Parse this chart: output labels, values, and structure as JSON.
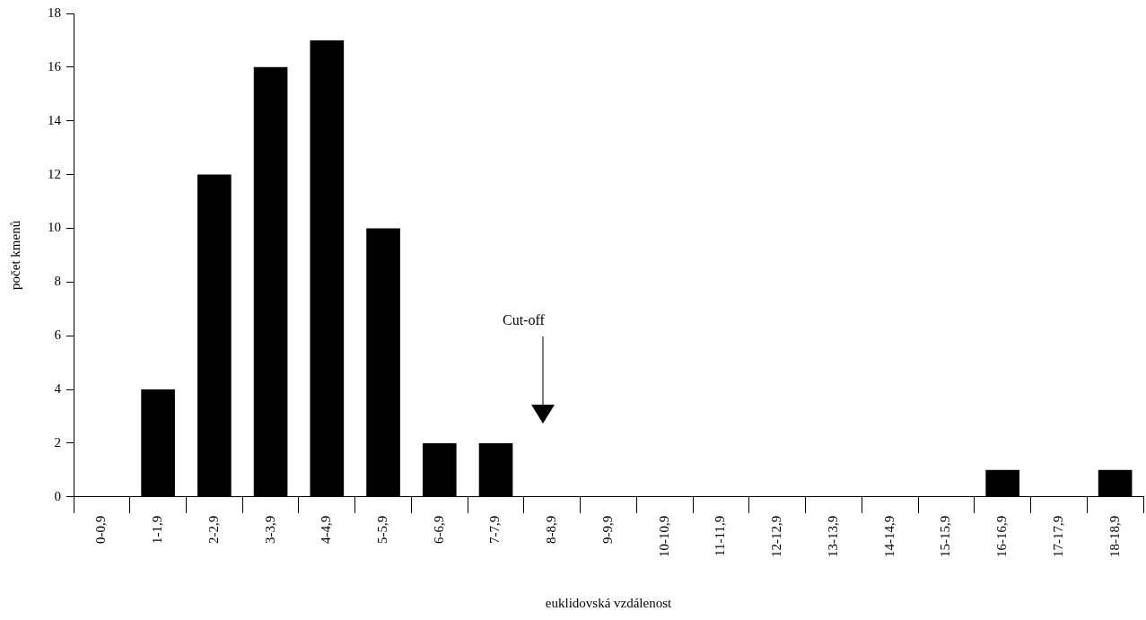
{
  "chart_data": {
    "type": "bar",
    "xlabel": "euklidovská vzdálenost",
    "ylabel": "počet kmenů",
    "categories": [
      "0-0,9",
      "1-1,9",
      "2-2,9",
      "3-3,9",
      "4-4,9",
      "5-5,9",
      "6-6,9",
      "7-7,9",
      "8-8,9",
      "9-9,9",
      "10-10,9",
      "11-11,9",
      "12-12,9",
      "13-13,9",
      "14-14,9",
      "15-15,9",
      "16-16,9",
      "17-17,9",
      "18-18,9"
    ],
    "values": [
      0,
      4,
      12,
      16,
      17,
      10,
      2,
      2,
      0,
      0,
      0,
      0,
      0,
      0,
      0,
      0,
      1,
      0,
      1
    ],
    "color": "#000000",
    "ylim": [
      0,
      18
    ],
    "yticks": [
      0,
      2,
      4,
      6,
      8,
      10,
      12,
      14,
      16,
      18
    ],
    "grid": false,
    "legend": false,
    "annotations": [
      "Cut-off"
    ]
  }
}
